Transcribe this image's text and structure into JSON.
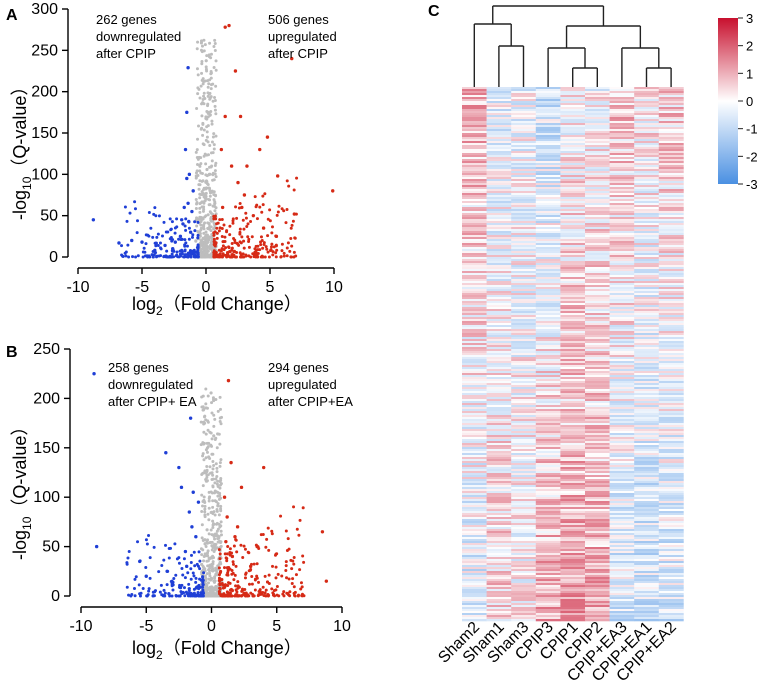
{
  "panels": {
    "a": "A",
    "b": "B",
    "c": "C"
  },
  "chart_data": [
    {
      "type": "scatter",
      "panel": "A",
      "title": "",
      "xlabel_pre": "log",
      "xlabel_sub": "2",
      "xlabel_post": "（Fold Change）",
      "ylabel_pre": "-log",
      "ylabel_sub": "10",
      "ylabel_post": "（Q-value）",
      "xlim": [
        -10,
        10
      ],
      "ylim": [
        0,
        300
      ],
      "xticks": [
        -10,
        -5,
        0,
        5,
        10
      ],
      "yticks": [
        0,
        50,
        100,
        150,
        200,
        250,
        300
      ],
      "annotations": {
        "down": [
          "262 genes",
          "downregulated",
          "after CPIP"
        ],
        "up": [
          "506 genes",
          "upregulated",
          "after CPIP"
        ]
      },
      "colors": {
        "down": "#1f3fd6",
        "up": "#d62a16",
        "ns": "#bdbdbd"
      },
      "highlight_points": {
        "down": [
          [
            -8.8,
            45
          ],
          [
            -6.8,
            17
          ],
          [
            -5.8,
            20
          ],
          [
            -5.0,
            18
          ],
          [
            -4.0,
            8
          ],
          [
            -3.2,
            14
          ],
          [
            -2.4,
            18
          ],
          [
            -1.9,
            45
          ],
          [
            -1.6,
            130
          ],
          [
            -1.5,
            175
          ],
          [
            -1.4,
            229
          ],
          [
            -1.7,
            60
          ],
          [
            -1.3,
            100
          ],
          [
            -1.0,
            80
          ],
          [
            -1.5,
            95
          ],
          [
            -1.8,
            40
          ],
          [
            -1.2,
            30
          ],
          [
            -2.0,
            25
          ],
          [
            -2.6,
            10
          ],
          [
            -1.1,
            55
          ],
          [
            -1.4,
            65
          ]
        ],
        "up": [
          [
            9.9,
            80
          ],
          [
            6.7,
            240
          ],
          [
            6.9,
            52
          ],
          [
            5.6,
            98
          ],
          [
            4.8,
            145
          ],
          [
            4.2,
            130
          ],
          [
            3.7,
            50
          ],
          [
            3.2,
            110
          ],
          [
            2.7,
            170
          ],
          [
            2.3,
            225
          ],
          [
            1.8,
            280
          ],
          [
            1.5,
            278
          ],
          [
            1.2,
            130
          ],
          [
            1.5,
            170
          ],
          [
            2.0,
            110
          ],
          [
            2.5,
            90
          ],
          [
            3.0,
            75
          ],
          [
            1.3,
            60
          ],
          [
            4.5,
            35
          ],
          [
            5.5,
            25
          ],
          [
            2.8,
            60
          ]
        ]
      }
    },
    {
      "type": "scatter",
      "panel": "B",
      "title": "",
      "xlabel_pre": "log",
      "xlabel_sub": "2",
      "xlabel_post": "（Fold Change）",
      "ylabel_pre": "-log",
      "ylabel_sub": "10",
      "ylabel_post": "（Q-value）",
      "xlim": [
        -10,
        10
      ],
      "ylim": [
        0,
        250
      ],
      "xticks": [
        -10,
        -5,
        0,
        5,
        10
      ],
      "yticks": [
        0,
        50,
        100,
        150,
        200,
        250
      ],
      "annotations": {
        "down": [
          "258 genes",
          "downregulated",
          "after CPIP+ EA"
        ],
        "up": [
          "294 genes",
          "upregulated",
          "after CPIP+EA"
        ]
      },
      "colors": {
        "down": "#1f3fd6",
        "up": "#d62a16",
        "ns": "#bdbdbd"
      },
      "highlight_points": {
        "down": [
          [
            -9.0,
            225
          ],
          [
            -8.8,
            50
          ],
          [
            -5.5,
            35
          ],
          [
            -5.0,
            20
          ],
          [
            -3.5,
            145
          ],
          [
            -3.4,
            25
          ],
          [
            -2.5,
            130
          ],
          [
            -2.3,
            110
          ],
          [
            -1.6,
            180
          ],
          [
            -1.4,
            105
          ],
          [
            -1.7,
            85
          ],
          [
            -1.2,
            60
          ],
          [
            -2.0,
            45
          ],
          [
            -1.0,
            95
          ],
          [
            -1.5,
            70
          ],
          [
            -1.9,
            30
          ]
        ],
        "up": [
          [
            8.8,
            15
          ],
          [
            8.5,
            65
          ],
          [
            4.0,
            130
          ],
          [
            3.5,
            50
          ],
          [
            2.3,
            110
          ],
          [
            1.8,
            60
          ],
          [
            1.5,
            135
          ],
          [
            1.3,
            218
          ],
          [
            1.0,
            100
          ],
          [
            1.2,
            80
          ],
          [
            1.6,
            40
          ],
          [
            2.0,
            70
          ],
          [
            1.1,
            55
          ],
          [
            3.0,
            30
          ]
        ]
      }
    },
    {
      "type": "heatmap",
      "panel": "C",
      "columns": [
        "Sham2",
        "Sham1",
        "Sham3",
        "CPIP3",
        "CPIP1",
        "CPIP2",
        "CPIP+EA3",
        "CPIP+EA1",
        "CPIP+EA2"
      ],
      "colorbar": {
        "min": -3,
        "max": 3,
        "ticks": [
          3,
          2,
          1,
          0,
          -1,
          -2,
          -3
        ],
        "low_color": "#4a90e2",
        "mid_color": "#ffffff",
        "high_color": "#c8102e"
      },
      "column_means": [
        0.8,
        -0.3,
        -0.2,
        -0.7,
        0.0,
        0.0,
        0.6,
        0.2,
        0.5
      ],
      "column_means_bottom": [
        -0.5,
        0.4,
        0.1,
        0.9,
        1.0,
        0.9,
        -0.6,
        -0.7,
        -0.6
      ],
      "dendrogram": "((Sham2,(Sham1,Sham3)),((CPIP3,(CPIP1,CPIP2)),(CPIP+EA3,(CPIP+EA1,CPIP+EA2))))"
    }
  ]
}
